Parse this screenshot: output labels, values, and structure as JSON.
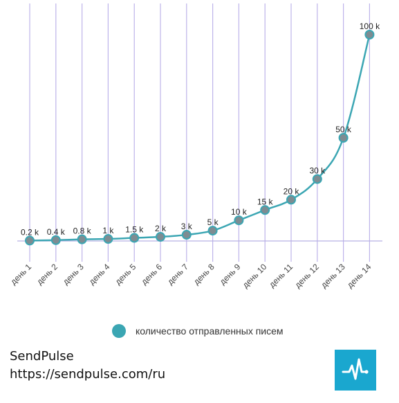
{
  "chart_data": {
    "type": "line",
    "categories": [
      "день 1",
      "день 2",
      "день 3",
      "день 4",
      "день 5",
      "день 6",
      "день 7",
      "день 8",
      "день 9",
      "день 10",
      "день 11",
      "день 12",
      "день 13",
      "день 14"
    ],
    "series": [
      {
        "name": "количество отправленных писем",
        "values": [
          0.2,
          0.4,
          0.8,
          1,
          1.5,
          2,
          3,
          5,
          10,
          15,
          20,
          30,
          50,
          100
        ],
        "data_labels": [
          "0.2 k",
          "0.4 k",
          "0.8 k",
          "1 k",
          "1.5 k",
          "2 k",
          "3 k",
          "5 k",
          "10 k",
          "15 k",
          "20 k",
          "30 k",
          "50 k",
          "100 k"
        ]
      }
    ],
    "ylim": [
      0,
      100
    ],
    "unit": "k",
    "grid": "vertical",
    "legend_position": "bottom",
    "colors": {
      "line": "#3ba6b3",
      "marker_fill": "#7e8c92",
      "marker_stroke": "#3ba6b3",
      "grid": "#bdb3ea",
      "axis": "#b8b0e4"
    }
  },
  "legend": {
    "label": "количество отправленных писем"
  },
  "brand": {
    "name": "SendPulse",
    "url": "https://sendpulse.com/ru"
  },
  "logo": {
    "icon": "pulse-icon"
  }
}
